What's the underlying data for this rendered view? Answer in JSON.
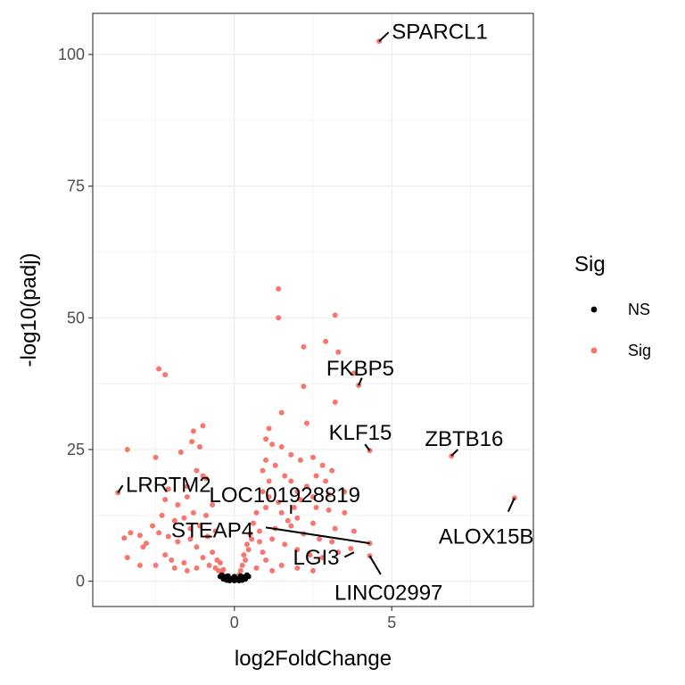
{
  "chart_data": {
    "type": "scatter",
    "xlabel": "log2FoldChange",
    "ylabel": "-log10(padj)",
    "xlim": [
      -4.5,
      9.5
    ],
    "ylim": [
      -4.8,
      107.8
    ],
    "x_ticks": [
      0,
      5
    ],
    "x_tick_labels": [
      "0",
      "5"
    ],
    "y_ticks": [
      0,
      25,
      50,
      75,
      100
    ],
    "y_tick_labels": [
      "0",
      "25",
      "50",
      "75",
      "100"
    ],
    "grid": true,
    "legend": {
      "title": "Sig",
      "position": "right",
      "entries": [
        {
          "name": "NS",
          "color": "#000000"
        },
        {
          "name": "Sig",
          "color": "#F8766D"
        }
      ]
    },
    "series": [
      {
        "name": "Sig",
        "color": "#F8766D",
        "points": [
          [
            4.6,
            102.5
          ],
          [
            1.4,
            55.5
          ],
          [
            3.2,
            50.5
          ],
          [
            1.4,
            50
          ],
          [
            2.9,
            45.5
          ],
          [
            2.2,
            44.5
          ],
          [
            3.3,
            43.5
          ],
          [
            3.8,
            39.5
          ],
          [
            3.95,
            37.2
          ],
          [
            -2.4,
            40.3
          ],
          [
            -2.2,
            39.2
          ],
          [
            2.2,
            37
          ],
          [
            3.2,
            34
          ],
          [
            1.5,
            32
          ],
          [
            2.3,
            30
          ],
          [
            1.1,
            29
          ],
          [
            -1.0,
            29.5
          ],
          [
            -1.3,
            28.5
          ],
          [
            4.3,
            24.8
          ],
          [
            6.9,
            23.8
          ],
          [
            8.9,
            15.8
          ],
          [
            -3.7,
            16.8
          ],
          [
            -3.4,
            25
          ],
          [
            -2.5,
            23.5
          ],
          [
            -1.35,
            26.5
          ],
          [
            -1.1,
            25.5
          ],
          [
            -1.7,
            24.5
          ],
          [
            -1.2,
            21
          ],
          [
            -1.0,
            20
          ],
          [
            -0.9,
            19.5
          ],
          [
            -1.5,
            18
          ],
          [
            -2.1,
            17.5
          ],
          [
            -2.2,
            15.5
          ],
          [
            -1.8,
            14.5
          ],
          [
            -2.3,
            12.5
          ],
          [
            -1.9,
            11.5
          ],
          [
            -2.6,
            10.5
          ],
          [
            -3.3,
            9.2
          ],
          [
            -3.0,
            8.7
          ],
          [
            -3.5,
            8.2
          ],
          [
            -2.9,
            6.5
          ],
          [
            -3.4,
            4.5
          ],
          [
            -2.2,
            5
          ],
          [
            -2.0,
            4
          ],
          [
            -1.6,
            3.5
          ],
          [
            -1.0,
            4.5
          ],
          [
            -0.8,
            3
          ],
          [
            -0.6,
            2.5
          ],
          [
            -0.5,
            2
          ],
          [
            -0.4,
            1.5
          ],
          [
            -0.3,
            1
          ],
          [
            -0.7,
            5.5
          ],
          [
            -1.2,
            6.5
          ],
          [
            -1.4,
            8
          ],
          [
            -1.1,
            10.5
          ],
          [
            -0.9,
            12.5
          ],
          [
            -0.7,
            14.5
          ],
          [
            -1.3,
            13
          ],
          [
            -1.6,
            12
          ],
          [
            -2.4,
            9.2
          ],
          [
            -2.8,
            7.2
          ],
          [
            -2.5,
            3
          ],
          [
            -3.0,
            3
          ],
          [
            -1.9,
            2.5
          ],
          [
            -1.5,
            2
          ],
          [
            -1.2,
            2.5
          ],
          [
            -1.8,
            7.5
          ],
          [
            -2.1,
            8.5
          ],
          [
            -1.5,
            16
          ],
          [
            -1.4,
            10
          ],
          [
            -0.85,
            8.5
          ],
          [
            -0.6,
            9.5
          ],
          [
            1.0,
            27
          ],
          [
            1.2,
            26
          ],
          [
            1.5,
            25.5
          ],
          [
            1.0,
            23
          ],
          [
            1.3,
            22
          ],
          [
            0.9,
            21
          ],
          [
            1.8,
            24
          ],
          [
            2.1,
            23
          ],
          [
            2.5,
            23.5
          ],
          [
            2.8,
            22
          ],
          [
            3.1,
            21
          ],
          [
            2.6,
            20
          ],
          [
            2.9,
            19
          ],
          [
            2.3,
            18
          ],
          [
            1.8,
            19
          ],
          [
            1.6,
            20
          ],
          [
            1.1,
            19
          ],
          [
            2.0,
            17
          ],
          [
            2.5,
            16
          ],
          [
            3.0,
            16.5
          ],
          [
            3.5,
            17
          ],
          [
            3.0,
            13.5
          ],
          [
            3.5,
            13
          ],
          [
            3.8,
            9.5
          ],
          [
            3.2,
            10
          ],
          [
            2.5,
            11
          ],
          [
            2.0,
            12
          ],
          [
            1.5,
            13
          ],
          [
            1.0,
            14
          ],
          [
            0.7,
            13
          ],
          [
            0.6,
            11
          ],
          [
            0.5,
            9
          ],
          [
            0.4,
            7
          ],
          [
            0.3,
            5
          ],
          [
            0.25,
            3
          ],
          [
            0.2,
            2
          ],
          [
            0.15,
            1.2
          ],
          [
            0.8,
            7.5
          ],
          [
            1.2,
            8
          ],
          [
            1.6,
            7
          ],
          [
            2.0,
            6
          ],
          [
            2.4,
            5
          ],
          [
            2.8,
            4.5
          ],
          [
            3.3,
            5.5
          ],
          [
            3.7,
            6.2
          ],
          [
            4.3,
            7.2
          ],
          [
            4.3,
            4.8
          ],
          [
            1.0,
            4
          ],
          [
            1.5,
            3
          ],
          [
            2.0,
            2.5
          ],
          [
            2.5,
            2
          ],
          [
            1.2,
            2
          ],
          [
            0.7,
            2.5
          ],
          [
            0.9,
            5.5
          ],
          [
            1.3,
            10
          ],
          [
            1.8,
            10.5
          ],
          [
            2.2,
            9
          ],
          [
            2.7,
            8
          ],
          [
            3.1,
            7.5
          ],
          [
            1.1,
            16
          ],
          [
            1.4,
            15
          ],
          [
            1.9,
            14
          ],
          [
            0.9,
            17
          ],
          [
            2.6,
            14
          ],
          [
            2.1,
            15.5
          ],
          [
            1.7,
            11.5
          ],
          [
            0.8,
            9.5
          ],
          [
            -0.45,
            3.5
          ],
          [
            -0.35,
            2.2
          ],
          [
            0.35,
            4
          ],
          [
            0.45,
            6
          ],
          [
            -0.55,
            4
          ],
          [
            0.55,
            8
          ]
        ]
      },
      {
        "name": "NS",
        "color": "#000000",
        "points": [
          [
            -0.4,
            1.2
          ],
          [
            -0.3,
            0.8
          ],
          [
            -0.2,
            0.5
          ],
          [
            -0.1,
            0.3
          ],
          [
            0,
            0.1
          ],
          [
            0.1,
            0.3
          ],
          [
            0.2,
            0.5
          ],
          [
            0.3,
            0.8
          ],
          [
            0.4,
            1.2
          ],
          [
            -0.35,
            0.4
          ],
          [
            -0.25,
            0.2
          ],
          [
            -0.15,
            0.1
          ],
          [
            0.15,
            0.1
          ],
          [
            0.25,
            0.2
          ],
          [
            0.35,
            0.4
          ],
          [
            -0.05,
            0.6
          ],
          [
            0.05,
            0.6
          ],
          [
            -0.45,
            0.9
          ],
          [
            0.45,
            0.9
          ],
          [
            -0.2,
            1.0
          ],
          [
            0.2,
            1.0
          ],
          [
            0,
            0.9
          ]
        ]
      }
    ],
    "annotations": [
      {
        "label": "SPARCL1",
        "point": [
          4.6,
          102.5
        ],
        "anchor": [
          4.9,
          104.2
        ],
        "text_pos": [
          5.0,
          104.3
        ],
        "align": "start"
      },
      {
        "label": "FKBP5",
        "point": [
          3.95,
          37.2
        ],
        "anchor": [
          4.05,
          38.6
        ],
        "text_pos": [
          4.0,
          40.4
        ],
        "align": "middle"
      },
      {
        "label": "KLF15",
        "point": [
          4.3,
          24.8
        ],
        "anchor": [
          4.15,
          26.0
        ],
        "text_pos": [
          3.0,
          28.2
        ],
        "align": "start"
      },
      {
        "label": "ZBTB16",
        "point": [
          6.9,
          23.8
        ],
        "anchor": [
          7.1,
          25.0
        ],
        "text_pos": [
          7.3,
          27.0
        ],
        "align": "middle"
      },
      {
        "label": "LRRTM2",
        "point": [
          -3.7,
          16.8
        ],
        "anchor": [
          -3.55,
          18.2
        ],
        "text_pos": [
          -3.45,
          18.3
        ],
        "align": "start"
      },
      {
        "label": "LOC101928819",
        "point": [
          1.8,
          12.8
        ],
        "anchor": [
          1.8,
          14.5
        ],
        "text_pos": [
          1.6,
          16.4
        ],
        "align": "middle"
      },
      {
        "label": "STEAP4",
        "point": [
          4.3,
          7.2
        ],
        "anchor": [
          1.0,
          10.2
        ],
        "text_pos": [
          -0.7,
          9.7
        ],
        "align": "middle"
      },
      {
        "label": "LGI3",
        "point": [
          3.8,
          5.5
        ],
        "anchor": [
          3.5,
          4.6
        ],
        "text_pos": [
          2.6,
          4.5
        ],
        "align": "middle"
      },
      {
        "label": "LINC02997",
        "point": [
          4.3,
          4.8
        ],
        "anchor": [
          4.65,
          1.3
        ],
        "text_pos": [
          4.9,
          -2.2
        ],
        "align": "middle"
      },
      {
        "label": "ALOX15B",
        "point": [
          8.9,
          15.8
        ],
        "anchor": [
          8.7,
          13.2
        ],
        "text_pos": [
          8.0,
          8.5
        ],
        "align": "middle"
      }
    ]
  }
}
